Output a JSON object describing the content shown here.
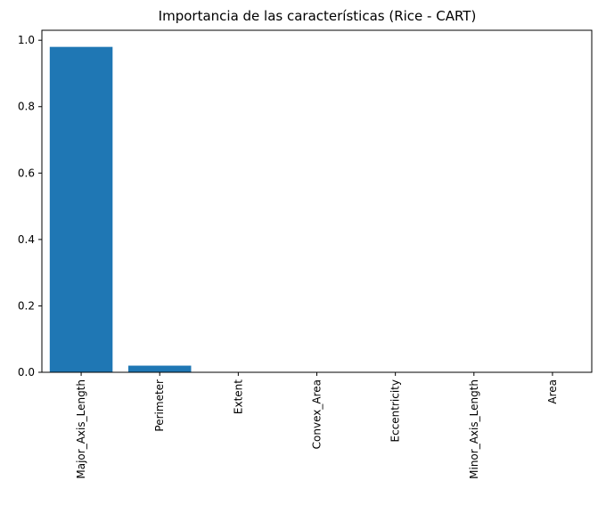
{
  "chart_data": {
    "type": "bar",
    "title": "Importancia de las características (Rice - CART)",
    "xlabel": "",
    "ylabel": "",
    "categories": [
      "Major_Axis_Length",
      "Perimeter",
      "Extent",
      "Convex_Area",
      "Eccentricity",
      "Minor_Axis_Length",
      "Area"
    ],
    "values": [
      0.98,
      0.02,
      0.0,
      0.0,
      0.0,
      0.0,
      0.0
    ],
    "ylim": [
      0,
      1.03
    ],
    "yticks": [
      0.0,
      0.2,
      0.4,
      0.6,
      0.8,
      1.0
    ],
    "ytick_labels": [
      "0.0",
      "0.2",
      "0.4",
      "0.6",
      "0.8",
      "1.0"
    ],
    "bar_color": "#1f77b4",
    "grid": false,
    "legend": "none",
    "x_tick_rotation": "vertical"
  }
}
